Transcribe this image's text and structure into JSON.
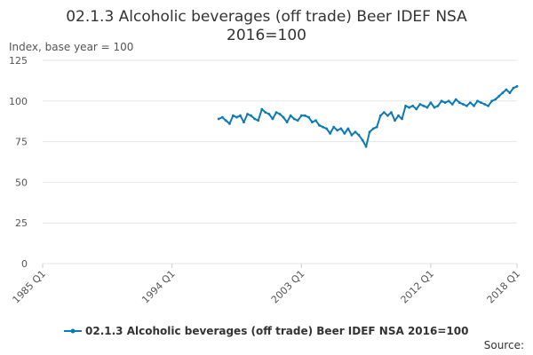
{
  "chart_data": {
    "type": "line",
    "title_line1": "02.1.3 Alcoholic beverages (off trade) Beer IDEF NSA",
    "title_line2": "2016=100",
    "ylabel": "Index, base year = 100",
    "ylim": [
      0,
      125
    ],
    "yticks": [
      "0",
      "25",
      "50",
      "75",
      "100",
      "125"
    ],
    "xticks": [
      "1985 Q1",
      "1994 Q1",
      "2003 Q1",
      "2012 Q1",
      "2018 Q1"
    ],
    "xlim": [
      1985.0,
      2018.0
    ],
    "grid": true,
    "legend_position": "bottom",
    "source_label": "Source:",
    "colors": {
      "series": "#0a7ab8",
      "grid": "#e6e6e6",
      "text": "#333333"
    },
    "series": [
      {
        "name": "02.1.3 Alcoholic beverages (off trade) Beer IDEF NSA 2016=100",
        "x": [
          1997.25,
          1997.5,
          1997.75,
          1998.0,
          1998.25,
          1998.5,
          1998.75,
          1999.0,
          1999.25,
          1999.5,
          1999.75,
          2000.0,
          2000.25,
          2000.5,
          2000.75,
          2001.0,
          2001.25,
          2001.5,
          2001.75,
          2002.0,
          2002.25,
          2002.5,
          2002.75,
          2003.0,
          2003.25,
          2003.5,
          2003.75,
          2004.0,
          2004.25,
          2004.5,
          2004.75,
          2005.0,
          2005.25,
          2005.5,
          2005.75,
          2006.0,
          2006.25,
          2006.5,
          2006.75,
          2007.0,
          2007.25,
          2007.5,
          2007.75,
          2008.0,
          2008.25,
          2008.5,
          2008.75,
          2009.0,
          2009.25,
          2009.5,
          2009.75,
          2010.0,
          2010.25,
          2010.5,
          2010.75,
          2011.0,
          2011.25,
          2011.5,
          2011.75,
          2012.0,
          2012.25,
          2012.5,
          2012.75,
          2013.0,
          2013.25,
          2013.5,
          2013.75,
          2014.0,
          2014.25,
          2014.5,
          2014.75,
          2015.0,
          2015.25,
          2015.5,
          2015.75,
          2016.0,
          2016.25,
          2016.5,
          2016.75,
          2017.0,
          2017.25,
          2017.5,
          2017.75,
          2018.0
        ],
        "values": [
          89,
          90,
          88,
          86,
          91,
          90,
          91,
          87,
          92,
          91,
          89,
          88,
          95,
          93,
          92,
          89,
          93,
          92,
          90,
          87,
          91,
          89,
          88,
          91,
          91,
          90,
          87,
          88,
          85,
          84,
          83,
          80,
          84,
          82,
          83,
          80,
          83,
          79,
          81,
          79,
          76,
          72,
          81,
          83,
          84,
          91,
          93,
          91,
          93,
          88,
          91,
          89,
          97,
          96,
          97,
          95,
          98,
          97,
          96,
          99,
          96,
          97,
          100,
          99,
          100,
          98,
          101,
          99,
          98,
          97,
          99,
          97,
          100,
          99,
          98,
          97,
          100,
          101,
          103,
          105,
          107,
          105,
          108,
          109
        ]
      }
    ]
  }
}
